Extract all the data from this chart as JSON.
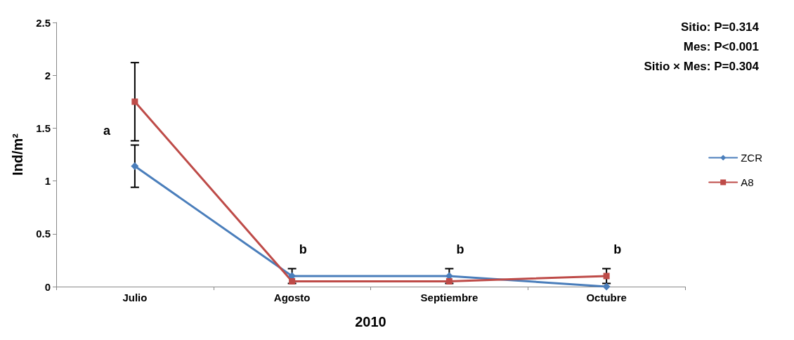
{
  "chart_data": {
    "type": "line",
    "xlabel": "2010",
    "ylabel": "Ind/m²",
    "categories": [
      "Julio",
      "Agosto",
      "Septiembre",
      "Octubre"
    ],
    "series": [
      {
        "name": "ZCR",
        "color": "#4a7ebb",
        "marker": "diamond",
        "values": [
          1.14,
          0.1,
          0.1,
          0
        ],
        "errors": [
          0.2,
          0.07,
          0.07,
          null
        ]
      },
      {
        "name": "A8",
        "color": "#be4b48",
        "marker": "square",
        "values": [
          1.75,
          0.05,
          0.05,
          0.1
        ],
        "errors": [
          0.37,
          null,
          null,
          0.07
        ]
      }
    ],
    "ylim": [
      0,
      2.5
    ],
    "yticks": [
      0,
      0.5,
      1,
      1.5,
      2,
      2.5
    ],
    "grid": false,
    "legend": "right",
    "line_style": "solid",
    "annotations": [
      {
        "text": "a",
        "x": "Julio",
        "y": 1.35
      },
      {
        "text": "b",
        "x": "Agosto",
        "y": 0.17
      },
      {
        "text": "b",
        "x": "Septiembre",
        "y": 0.17
      },
      {
        "text": "b",
        "x": "Octubre",
        "y": 0.17
      },
      "Sitio: P=0.314",
      "Mes: P<0.001",
      "Sitio × Mes: P=0.304"
    ]
  }
}
